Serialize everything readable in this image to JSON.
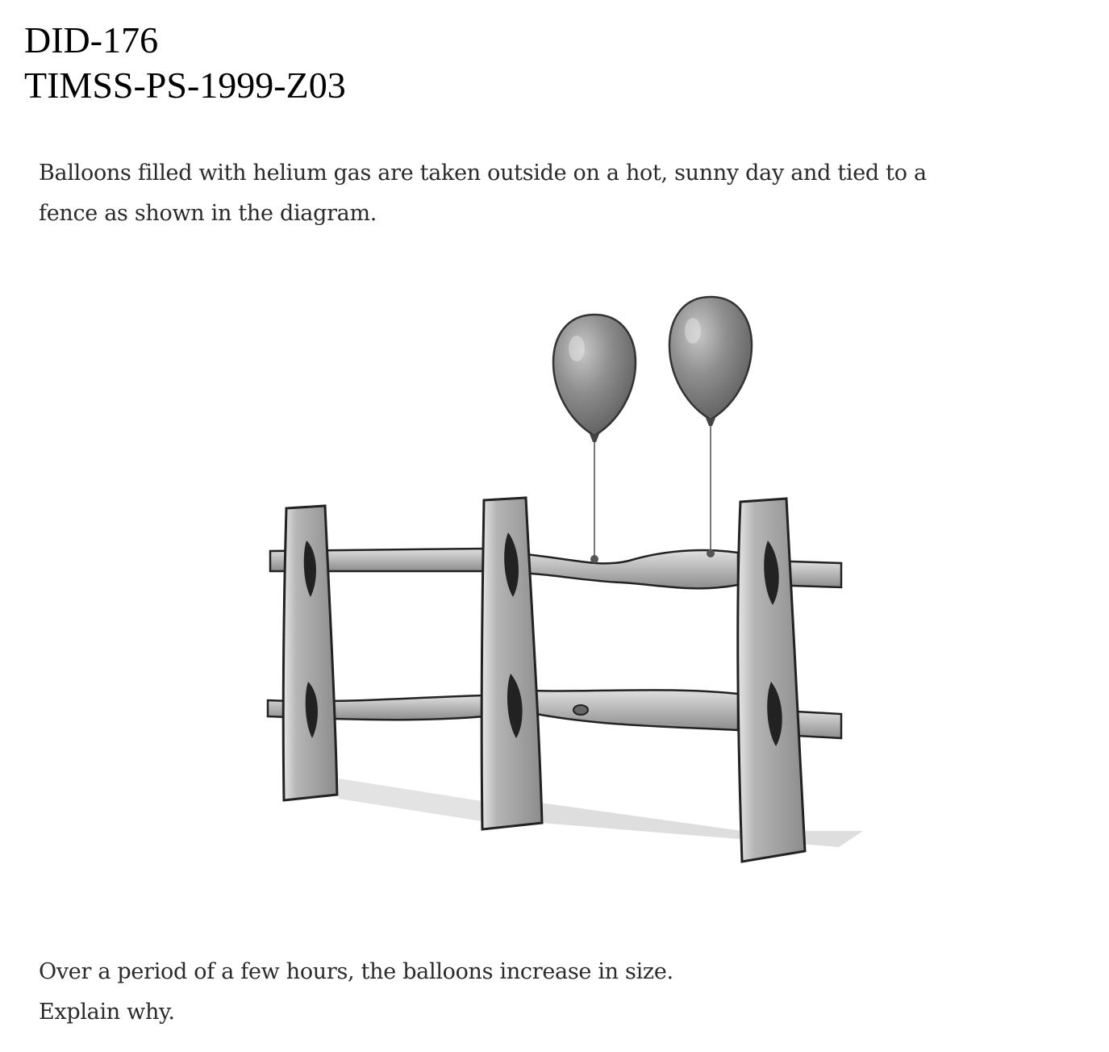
{
  "header": {
    "line1": "DID-176",
    "line2": "TIMSS-PS-1999-Z03"
  },
  "question": {
    "intro_line1": "Balloons filled with helium gas are taken outside on a hot, sunny day and tied to a",
    "intro_line2": "fence as shown in the diagram.",
    "prompt_line1": "Over a period of a few hours, the balloons increase in size.",
    "prompt_line2": "Explain why."
  },
  "figure": {
    "balloon_color": "#8a8a8a",
    "fence_color": "#a9a9a9",
    "shadow_color": "#d8d8d8"
  }
}
